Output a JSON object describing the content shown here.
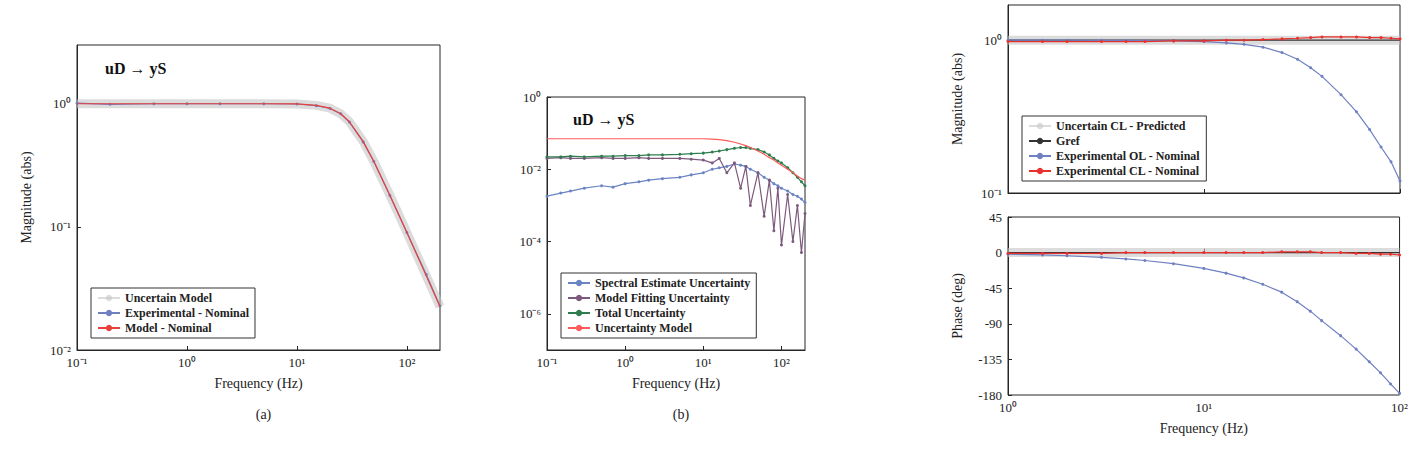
{
  "chart_data": [
    {
      "type": "line",
      "title": "uD → yS",
      "caption": "(a)",
      "x_label": "Frequency (Hz)",
      "y_label": "Magnitude (abs)",
      "log": true,
      "grid": false,
      "legend": "lower left",
      "xlim": [
        0.1,
        200
      ],
      "ylim": [
        0.01,
        3
      ],
      "xticks": [
        {
          "value": 0.1,
          "label": "10⁻¹"
        },
        {
          "value": 1,
          "label": "10⁰"
        },
        {
          "value": 10,
          "label": "10¹"
        },
        {
          "value": 100,
          "label": "10²"
        }
      ],
      "yticks": [
        {
          "value": 0.01,
          "label": "10⁻²"
        },
        {
          "value": 0.1,
          "label": "10⁻¹"
        },
        {
          "value": 1,
          "label": "10⁰"
        }
      ],
      "x": [
        0.1,
        0.2,
        0.5,
        1,
        2,
        5,
        10,
        15,
        20,
        25,
        30,
        40,
        50,
        70,
        100,
        150,
        200
      ],
      "series": [
        {
          "name": "Uncertain Model",
          "color": "#c4c4c4",
          "line_style": "thick",
          "values": [
            1,
            1,
            1,
            1,
            1,
            1,
            0.996,
            0.97,
            0.92,
            0.83,
            0.714,
            0.495,
            0.341,
            0.181,
            0.09,
            0.04,
            0.0225
          ]
        },
        {
          "name": "Experimental - Nominal",
          "color": "#6f80c0",
          "marker": "circle",
          "line_style": "solid",
          "values": [
            1.01,
            0.99,
            1,
            1,
            1,
            1,
            0.995,
            0.965,
            0.915,
            0.83,
            0.71,
            0.49,
            0.34,
            0.18,
            0.09,
            0.041,
            0.0228
          ]
        },
        {
          "name": "Model - Nominal",
          "color": "#e8413c",
          "line_style": "solid",
          "values": [
            1,
            1,
            1,
            1,
            1,
            1,
            0.996,
            0.97,
            0.92,
            0.83,
            0.714,
            0.495,
            0.341,
            0.181,
            0.09,
            0.04,
            0.0225
          ]
        }
      ]
    },
    {
      "type": "line",
      "title": "uD → yS",
      "caption": "(b)",
      "x_label": "Frequency (Hz)",
      "log": true,
      "grid": false,
      "legend": "lower left",
      "xlim": [
        0.1,
        200
      ],
      "ylim": [
        1e-07,
        1
      ],
      "xticks": [
        {
          "value": 0.1,
          "label": "10⁻¹"
        },
        {
          "value": 1,
          "label": "10⁰"
        },
        {
          "value": 10,
          "label": "10¹"
        },
        {
          "value": 100,
          "label": "10²"
        }
      ],
      "yticks": [
        {
          "value": 1e-06,
          "label": "10⁻⁶"
        },
        {
          "value": 0.0001,
          "label": "10⁻⁴"
        },
        {
          "value": 0.01,
          "label": "10⁻²"
        },
        {
          "value": 1,
          "label": "10⁰"
        }
      ],
      "x": [
        0.1,
        0.15,
        0.2,
        0.3,
        0.5,
        0.7,
        1,
        1.5,
        2,
        3,
        5,
        7,
        10,
        13,
        16,
        20,
        25,
        30,
        35,
        40,
        50,
        60,
        70,
        80,
        90,
        100,
        120,
        140,
        160,
        180,
        200
      ],
      "series": [
        {
          "name": "Spectral Estimate Uncertainty",
          "color": "#6a84c4",
          "marker": "circle",
          "line_style": "solid",
          "values": [
            0.0018,
            0.0022,
            0.0025,
            0.003,
            0.0035,
            0.0032,
            0.004,
            0.0045,
            0.005,
            0.0055,
            0.006,
            0.007,
            0.008,
            0.01,
            0.011,
            0.012,
            0.014,
            0.013,
            0.012,
            0.01,
            0.008,
            0.006,
            0.005,
            0.004,
            0.0035,
            0.003,
            0.0025,
            0.002,
            0.0018,
            0.0015,
            0.0012
          ]
        },
        {
          "name": "Model Fitting Uncertainty",
          "color": "#7d5a7d",
          "marker": "circle",
          "line_style": "solid",
          "values": [
            0.02,
            0.021,
            0.02,
            0.02,
            0.021,
            0.02,
            0.02,
            0.021,
            0.02,
            0.02,
            0.02,
            0.019,
            0.018,
            0.015,
            0.02,
            0.008,
            0.015,
            0.003,
            0.012,
            0.001,
            0.008,
            0.0005,
            0.005,
            0.0002,
            0.003,
            8e-05,
            0.002,
            0.0001,
            0.001,
            5e-05,
            0.0006
          ]
        },
        {
          "name": "Total Uncertainty",
          "color": "#2e7d4f",
          "marker": "circle",
          "line_style": "solid",
          "values": [
            0.022,
            0.022,
            0.023,
            0.022,
            0.023,
            0.023,
            0.024,
            0.024,
            0.025,
            0.025,
            0.026,
            0.027,
            0.028,
            0.03,
            0.032,
            0.035,
            0.038,
            0.04,
            0.04,
            0.038,
            0.035,
            0.03,
            0.025,
            0.02,
            0.017,
            0.015,
            0.011,
            0.008,
            0.006,
            0.0045,
            0.0035
          ]
        },
        {
          "name": "Uncertainty Model",
          "color": "#ff5a5a",
          "line_style": "solid",
          "values": [
            0.07,
            0.07,
            0.07,
            0.07,
            0.07,
            0.07,
            0.07,
            0.07,
            0.07,
            0.07,
            0.07,
            0.07,
            0.07,
            0.068,
            0.066,
            0.062,
            0.056,
            0.05,
            0.045,
            0.04,
            0.032,
            0.026,
            0.021,
            0.018,
            0.015,
            0.013,
            0.01,
            0.008,
            0.0065,
            0.0055,
            0.005
          ]
        }
      ]
    },
    {
      "type": "line",
      "y_label": "Magnitude (abs)",
      "log": true,
      "grid": false,
      "legend": "lower left",
      "tick_labels": "y",
      "xlim": [
        1,
        100
      ],
      "ylim": [
        0.1,
        1.7
      ],
      "xticks": [
        {
          "value": 1,
          "label": "10⁰"
        },
        {
          "value": 10,
          "label": "10¹"
        },
        {
          "value": 100,
          "label": "10²"
        }
      ],
      "yticks": [
        {
          "value": 0.1,
          "label": "10⁻¹"
        },
        {
          "value": 1,
          "label": "10⁰"
        }
      ],
      "x": [
        1,
        1.5,
        2,
        3,
        4,
        5,
        7,
        10,
        13,
        16,
        20,
        25,
        30,
        35,
        40,
        50,
        60,
        70,
        80,
        90,
        100
      ],
      "series": [
        {
          "name": "Uncertain CL - Predicted",
          "color": "#c4c4c4",
          "line_style": "thick",
          "values": [
            1,
            1,
            1,
            1,
            1,
            1,
            1,
            1,
            1,
            1,
            1,
            1,
            1,
            1,
            1,
            1,
            1,
            1,
            1,
            1,
            1
          ]
        },
        {
          "name": "Gref",
          "color": "#333333",
          "line_style": "solid",
          "values": [
            1,
            1,
            1,
            1,
            1,
            1,
            1,
            1,
            1,
            1,
            1,
            1,
            1,
            1,
            1,
            1,
            1,
            1,
            1,
            1,
            1
          ]
        },
        {
          "name": "Experimental OL - Nominal",
          "color": "#6f80c0",
          "marker": "circle",
          "line_style": "solid",
          "values": [
            1,
            1,
            1,
            0.998,
            0.997,
            0.995,
            0.99,
            0.98,
            0.96,
            0.94,
            0.9,
            0.83,
            0.75,
            0.66,
            0.58,
            0.44,
            0.34,
            0.26,
            0.2,
            0.16,
            0.12
          ]
        },
        {
          "name": "Experimental CL - Nominal",
          "color": "#e8312c",
          "marker": "circle",
          "line_style": "solid",
          "values": [
            0.98,
            0.98,
            0.98,
            0.98,
            0.98,
            0.98,
            0.99,
            0.99,
            1,
            1,
            1.01,
            1.02,
            1.03,
            1.04,
            1.05,
            1.05,
            1.05,
            1.04,
            1.04,
            1.03,
            1.02
          ]
        }
      ]
    },
    {
      "type": "line",
      "x_label": "Frequency (Hz)",
      "y_label": "Phase (deg)",
      "log": "x",
      "grid": false,
      "xlim": [
        1,
        100
      ],
      "ylim": [
        -180,
        45
      ],
      "xticks": [
        {
          "value": 1,
          "label": "10⁰"
        },
        {
          "value": 10,
          "label": "10¹"
        },
        {
          "value": 100,
          "label": "10²"
        }
      ],
      "yticks": [
        -180,
        -135,
        -90,
        -45,
        0,
        45
      ],
      "x": [
        1,
        1.5,
        2,
        3,
        4,
        5,
        7,
        10,
        13,
        16,
        20,
        25,
        30,
        35,
        40,
        50,
        60,
        70,
        80,
        90,
        100
      ],
      "series": [
        {
          "name": "Uncertain CL - Predicted",
          "color": "#c4c4c4",
          "line_style": "thick",
          "values": [
            0,
            0,
            0,
            0,
            0,
            0,
            0,
            0,
            0,
            0,
            0,
            0,
            0,
            0,
            0,
            0,
            0,
            0,
            0,
            0,
            0
          ]
        },
        {
          "name": "Gref",
          "color": "#333333",
          "line_style": "solid",
          "values": [
            0,
            0,
            0,
            0,
            0,
            0,
            0,
            0,
            0,
            0,
            0,
            0,
            0,
            0,
            0,
            0,
            0,
            0,
            0,
            0,
            0
          ]
        },
        {
          "name": "Experimental OL - Nominal",
          "color": "#6f80c0",
          "marker": "circle",
          "line_style": "solid",
          "values": [
            -2,
            -3,
            -4,
            -6,
            -8,
            -10,
            -14,
            -20,
            -26,
            -32,
            -40,
            -50,
            -62,
            -74,
            -86,
            -105,
            -122,
            -138,
            -152,
            -166,
            -178
          ]
        },
        {
          "name": "Experimental CL - Nominal",
          "color": "#e8312c",
          "marker": "circle",
          "line_style": "solid",
          "values": [
            -1,
            -1,
            -1,
            -1,
            0,
            0,
            0,
            0,
            0,
            0,
            0,
            1,
            1,
            1,
            0,
            0,
            -1,
            -1,
            -2,
            -2,
            -3
          ]
        }
      ]
    }
  ]
}
